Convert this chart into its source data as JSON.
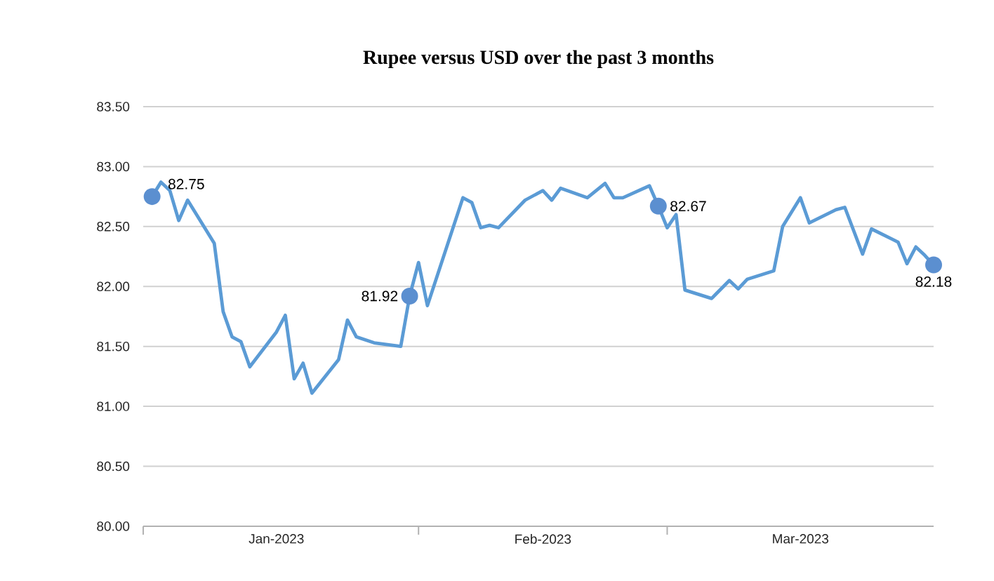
{
  "chart_data": {
    "type": "line",
    "title": "Rupee versus USD over the past 3 months",
    "x": [
      "2023-01-02",
      "2023-01-03",
      "2023-01-04",
      "2023-01-05",
      "2023-01-06",
      "2023-01-09",
      "2023-01-10",
      "2023-01-11",
      "2023-01-12",
      "2023-01-13",
      "2023-01-16",
      "2023-01-17",
      "2023-01-18",
      "2023-01-19",
      "2023-01-20",
      "2023-01-23",
      "2023-01-24",
      "2023-01-25",
      "2023-01-27",
      "2023-01-30",
      "2023-01-31",
      "2023-02-01",
      "2023-02-02",
      "2023-02-06",
      "2023-02-07",
      "2023-02-08",
      "2023-02-09",
      "2023-02-10",
      "2023-02-13",
      "2023-02-15",
      "2023-02-16",
      "2023-02-17",
      "2023-02-20",
      "2023-02-22",
      "2023-02-23",
      "2023-02-24",
      "2023-02-27",
      "2023-02-28",
      "2023-03-01",
      "2023-03-02",
      "2023-03-03",
      "2023-03-06",
      "2023-03-08",
      "2023-03-09",
      "2023-03-10",
      "2023-03-13",
      "2023-03-14",
      "2023-03-16",
      "2023-03-17",
      "2023-03-20",
      "2023-03-21",
      "2023-03-23",
      "2023-03-24",
      "2023-03-27",
      "2023-03-28",
      "2023-03-29",
      "2023-03-30",
      "2023-03-31"
    ],
    "series": [
      {
        "color": "#5b9bd5",
        "values": [
          82.75,
          82.87,
          82.8,
          82.55,
          82.72,
          82.36,
          81.79,
          81.58,
          81.54,
          81.33,
          81.62,
          81.76,
          81.23,
          81.36,
          81.11,
          81.39,
          81.72,
          81.58,
          81.53,
          81.5,
          81.92,
          82.2,
          81.84,
          82.74,
          82.7,
          82.49,
          82.51,
          82.49,
          82.72,
          82.8,
          82.72,
          82.82,
          82.74,
          82.86,
          82.74,
          82.74,
          82.84,
          82.67,
          82.49,
          82.6,
          81.97,
          81.9,
          82.05,
          81.98,
          82.06,
          82.13,
          82.5,
          82.74,
          82.53,
          82.64,
          82.66,
          82.27,
          82.48,
          82.37,
          82.19,
          82.33,
          82.26,
          82.18
        ]
      }
    ],
    "xlim": [
      "2023-01-01",
      "2023-03-31"
    ],
    "xticks": [
      {
        "value": "2023-01-01",
        "label": null
      },
      {
        "value": "2023-01-16",
        "label": "Jan-2023"
      },
      {
        "value": "2023-02-01",
        "label": null
      },
      {
        "value": "2023-02-15",
        "label": "Feb-2023"
      },
      {
        "value": "2023-03-01",
        "label": null
      },
      {
        "value": "2023-03-16",
        "label": "Mar-2023"
      }
    ],
    "ylim": [
      80,
      83.5
    ],
    "yticks": [
      {
        "value": 80,
        "label": "80.00"
      },
      {
        "value": 80.5,
        "label": "80.50"
      },
      {
        "value": 81,
        "label": "81.00"
      },
      {
        "value": 81.5,
        "label": "81.50"
      },
      {
        "value": 82,
        "label": "82.00"
      },
      {
        "value": 82.5,
        "label": "82.50"
      },
      {
        "value": 83,
        "label": "83.00"
      },
      {
        "value": 83.5,
        "label": "83.50"
      }
    ],
    "grid": "y",
    "marker": "none",
    "line_style": "solid",
    "annotations": [
      {
        "text": "82.75",
        "x": "2023-01-02",
        "y": 82.75
      },
      {
        "text": "81.92",
        "x": "2023-01-31",
        "y": 81.92
      },
      {
        "text": "82.67",
        "x": "2023-02-28",
        "y": 82.67
      },
      {
        "text": "82.18",
        "x": "2023-03-31",
        "y": 82.18
      }
    ]
  }
}
